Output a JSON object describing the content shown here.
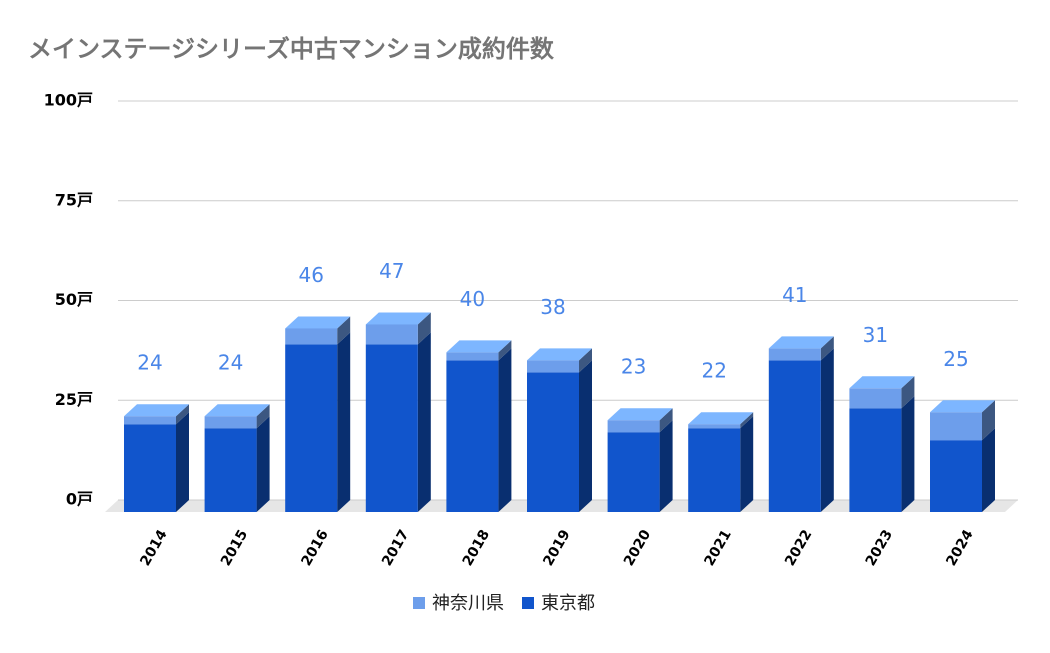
{
  "chart_data": {
    "type": "stacked-bar-3d",
    "title": "メインステージシリーズ中古マンション成約件数",
    "categories": [
      "2014",
      "2015",
      "2016",
      "2017",
      "2018",
      "2019",
      "2020",
      "2021",
      "2022",
      "2023",
      "2024"
    ],
    "series": [
      {
        "name": "東京都",
        "color": "#1155cc",
        "values": [
          22,
          21,
          42,
          42,
          38,
          35,
          20,
          21,
          38,
          26,
          18
        ]
      },
      {
        "name": "神奈川県",
        "color": "#6d9eeb",
        "values": [
          2,
          3,
          4,
          5,
          2,
          3,
          3,
          1,
          3,
          5,
          7
        ]
      }
    ],
    "totals": [
      24,
      24,
      46,
      47,
      40,
      38,
      23,
      22,
      41,
      31,
      25
    ],
    "ylim": [
      0,
      100
    ],
    "yticks": [
      {
        "value": 0,
        "label": "0戸"
      },
      {
        "value": 25,
        "label": "25戸"
      },
      {
        "value": 50,
        "label": "50戸"
      },
      {
        "value": 75,
        "label": "75戸"
      },
      {
        "value": 100,
        "label": "100戸"
      }
    ],
    "grid": true,
    "legend": "bottom"
  }
}
